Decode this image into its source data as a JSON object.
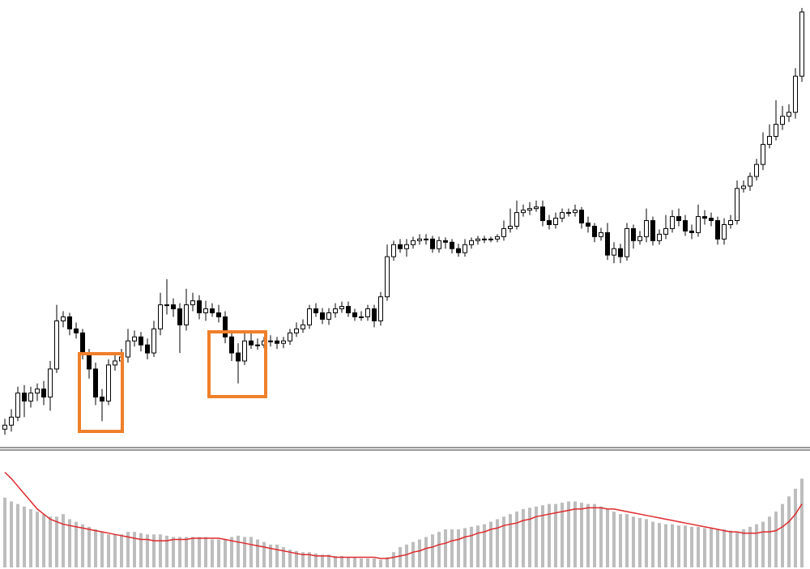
{
  "chart_data": [
    {
      "type": "candlestick",
      "up_color": "#ffffff",
      "down_color": "#000000",
      "edge_color": "#000000",
      "ylim": [
        0,
        560
      ],
      "open": [
        25,
        30,
        40,
        70,
        60,
        70,
        75,
        65,
        100,
        160,
        165,
        150,
        145,
        120,
        100,
        65,
        60,
        105,
        110,
        115,
        135,
        140,
        130,
        120,
        150,
        180,
        180,
        175,
        155,
        180,
        185,
        170,
        175,
        170,
        165,
        140,
        120,
        110,
        135,
        130,
        130,
        135,
        135,
        132,
        135,
        145,
        150,
        155,
        175,
        170,
        162,
        170,
        175,
        178,
        170,
        165,
        165,
        175,
        160,
        190,
        240,
        255,
        250,
        255,
        260,
        262,
        262,
        250,
        260,
        258,
        250,
        245,
        255,
        260,
        262,
        262,
        262,
        265,
        275,
        278,
        295,
        298,
        300,
        302,
        285,
        280,
        288,
        295,
        295,
        298,
        282,
        278,
        265,
        270,
        242,
        250,
        240,
        275,
        260,
        265,
        285,
        260,
        268,
        275,
        290,
        285,
        272,
        270,
        290,
        288,
        285,
        262,
        280,
        285,
        325,
        328,
        340,
        355,
        380,
        390,
        405,
        415,
        420,
        465
      ],
      "high": [
        38,
        50,
        78,
        80,
        78,
        82,
        85,
        110,
        180,
        172,
        170,
        158,
        150,
        125,
        108,
        75,
        112,
        118,
        125,
        150,
        148,
        146,
        138,
        160,
        195,
        212,
        188,
        182,
        200,
        195,
        192,
        185,
        182,
        180,
        172,
        148,
        132,
        145,
        148,
        138,
        140,
        142,
        140,
        140,
        150,
        158,
        162,
        180,
        182,
        176,
        176,
        182,
        184,
        184,
        175,
        172,
        180,
        180,
        196,
        255,
        260,
        262,
        262,
        265,
        268,
        268,
        266,
        265,
        264,
        262,
        256,
        262,
        264,
        266,
        266,
        265,
        268,
        285,
        300,
        310,
        305,
        308,
        310,
        310,
        292,
        295,
        300,
        300,
        305,
        302,
        290,
        282,
        276,
        282,
        258,
        256,
        282,
        280,
        272,
        300,
        290,
        274,
        292,
        298,
        300,
        292,
        280,
        305,
        298,
        295,
        290,
        288,
        292,
        335,
        335,
        345,
        362,
        395,
        405,
        435,
        428,
        430,
        475,
        550
      ],
      "low": [
        18,
        22,
        35,
        40,
        52,
        60,
        55,
        48,
        95,
        152,
        142,
        138,
        112,
        88,
        55,
        35,
        55,
        98,
        105,
        108,
        128,
        122,
        112,
        115,
        142,
        168,
        165,
        120,
        148,
        172,
        162,
        160,
        165,
        158,
        132,
        110,
        82,
        105,
        125,
        124,
        126,
        128,
        125,
        126,
        130,
        140,
        145,
        150,
        165,
        156,
        155,
        164,
        170,
        165,
        160,
        160,
        160,
        152,
        154,
        185,
        235,
        245,
        240,
        250,
        255,
        255,
        245,
        245,
        250,
        244,
        240,
        240,
        250,
        255,
        257,
        258,
        258,
        260,
        270,
        274,
        290,
        292,
        296,
        278,
        274,
        275,
        283,
        290,
        290,
        275,
        270,
        258,
        260,
        236,
        232,
        232,
        235,
        250,
        255,
        258,
        254,
        255,
        262,
        270,
        278,
        266,
        262,
        265,
        280,
        278,
        255,
        255,
        275,
        280,
        320,
        322,
        335,
        348,
        375,
        385,
        398,
        408,
        412,
        458
      ],
      "close": [
        30,
        40,
        70,
        60,
        70,
        75,
        65,
        100,
        160,
        165,
        150,
        145,
        120,
        100,
        65,
        60,
        105,
        110,
        115,
        135,
        140,
        130,
        120,
        150,
        180,
        180,
        175,
        155,
        180,
        185,
        170,
        175,
        170,
        165,
        140,
        120,
        110,
        135,
        130,
        130,
        135,
        135,
        132,
        135,
        145,
        150,
        155,
        175,
        170,
        162,
        170,
        175,
        178,
        170,
        165,
        165,
        175,
        160,
        190,
        240,
        255,
        250,
        255,
        260,
        262,
        262,
        250,
        260,
        258,
        250,
        245,
        255,
        260,
        262,
        262,
        262,
        265,
        275,
        278,
        295,
        298,
        300,
        302,
        285,
        280,
        288,
        295,
        295,
        298,
        282,
        278,
        265,
        270,
        242,
        250,
        240,
        275,
        260,
        265,
        285,
        260,
        268,
        275,
        290,
        285,
        272,
        270,
        290,
        288,
        285,
        262,
        280,
        285,
        325,
        328,
        340,
        355,
        380,
        390,
        405,
        415,
        420,
        465,
        545
      ]
    },
    {
      "type": "bar",
      "ylim": [
        0,
        90
      ],
      "series": [
        {
          "kind": "bar",
          "color": "#bdbdbd",
          "values": [
            55,
            52,
            50,
            48,
            46,
            44,
            42,
            40,
            40,
            42,
            38,
            36,
            34,
            32,
            30,
            28,
            26,
            26,
            26,
            28,
            28,
            27,
            26,
            26,
            26,
            25,
            24,
            24,
            24,
            24,
            24,
            24,
            22,
            22,
            22,
            24,
            25,
            24,
            24,
            22,
            20,
            18,
            18,
            16,
            14,
            13,
            12,
            12,
            11,
            10,
            10,
            9,
            9,
            8,
            8,
            7,
            7,
            7,
            6,
            8,
            12,
            16,
            18,
            20,
            22,
            24,
            26,
            28,
            30,
            30,
            30,
            31,
            32,
            33,
            34,
            36,
            38,
            40,
            42,
            44,
            46,
            47,
            48,
            49,
            50,
            50,
            51,
            52,
            52,
            51,
            50,
            50,
            48,
            46,
            44,
            42,
            42,
            40,
            39,
            38,
            36,
            35,
            34,
            34,
            33,
            33,
            32,
            32,
            31,
            31,
            30,
            30,
            29,
            28,
            30,
            32,
            34,
            36,
            40,
            44,
            50,
            56,
            62,
            70
          ]
        },
        {
          "kind": "line",
          "color": "#e0292b",
          "values": [
            75,
            70,
            64,
            58,
            52,
            46,
            42,
            38,
            36,
            34,
            33,
            32,
            31,
            30,
            29,
            28,
            27,
            26,
            25,
            24,
            23,
            22,
            22,
            21,
            21,
            21,
            22,
            22,
            22,
            23,
            23,
            23,
            23,
            23,
            22,
            21,
            20,
            19,
            18,
            17,
            16,
            15,
            14,
            13,
            12,
            11,
            10,
            10,
            9,
            9,
            9,
            8,
            8,
            8,
            8,
            8,
            8,
            8,
            7,
            7,
            8,
            9,
            10,
            12,
            13,
            15,
            16,
            18,
            19,
            21,
            22,
            24,
            25,
            27,
            28,
            30,
            31,
            33,
            34,
            35,
            37,
            38,
            40,
            41,
            42,
            43,
            44,
            45,
            46,
            46,
            47,
            47,
            47,
            46,
            46,
            45,
            44,
            43,
            42,
            41,
            40,
            39,
            38,
            37,
            36,
            35,
            34,
            33,
            32,
            31,
            30,
            29,
            28,
            28,
            27,
            27,
            27,
            28,
            28,
            29,
            32,
            36,
            42,
            50
          ]
        }
      ]
    }
  ]
}
